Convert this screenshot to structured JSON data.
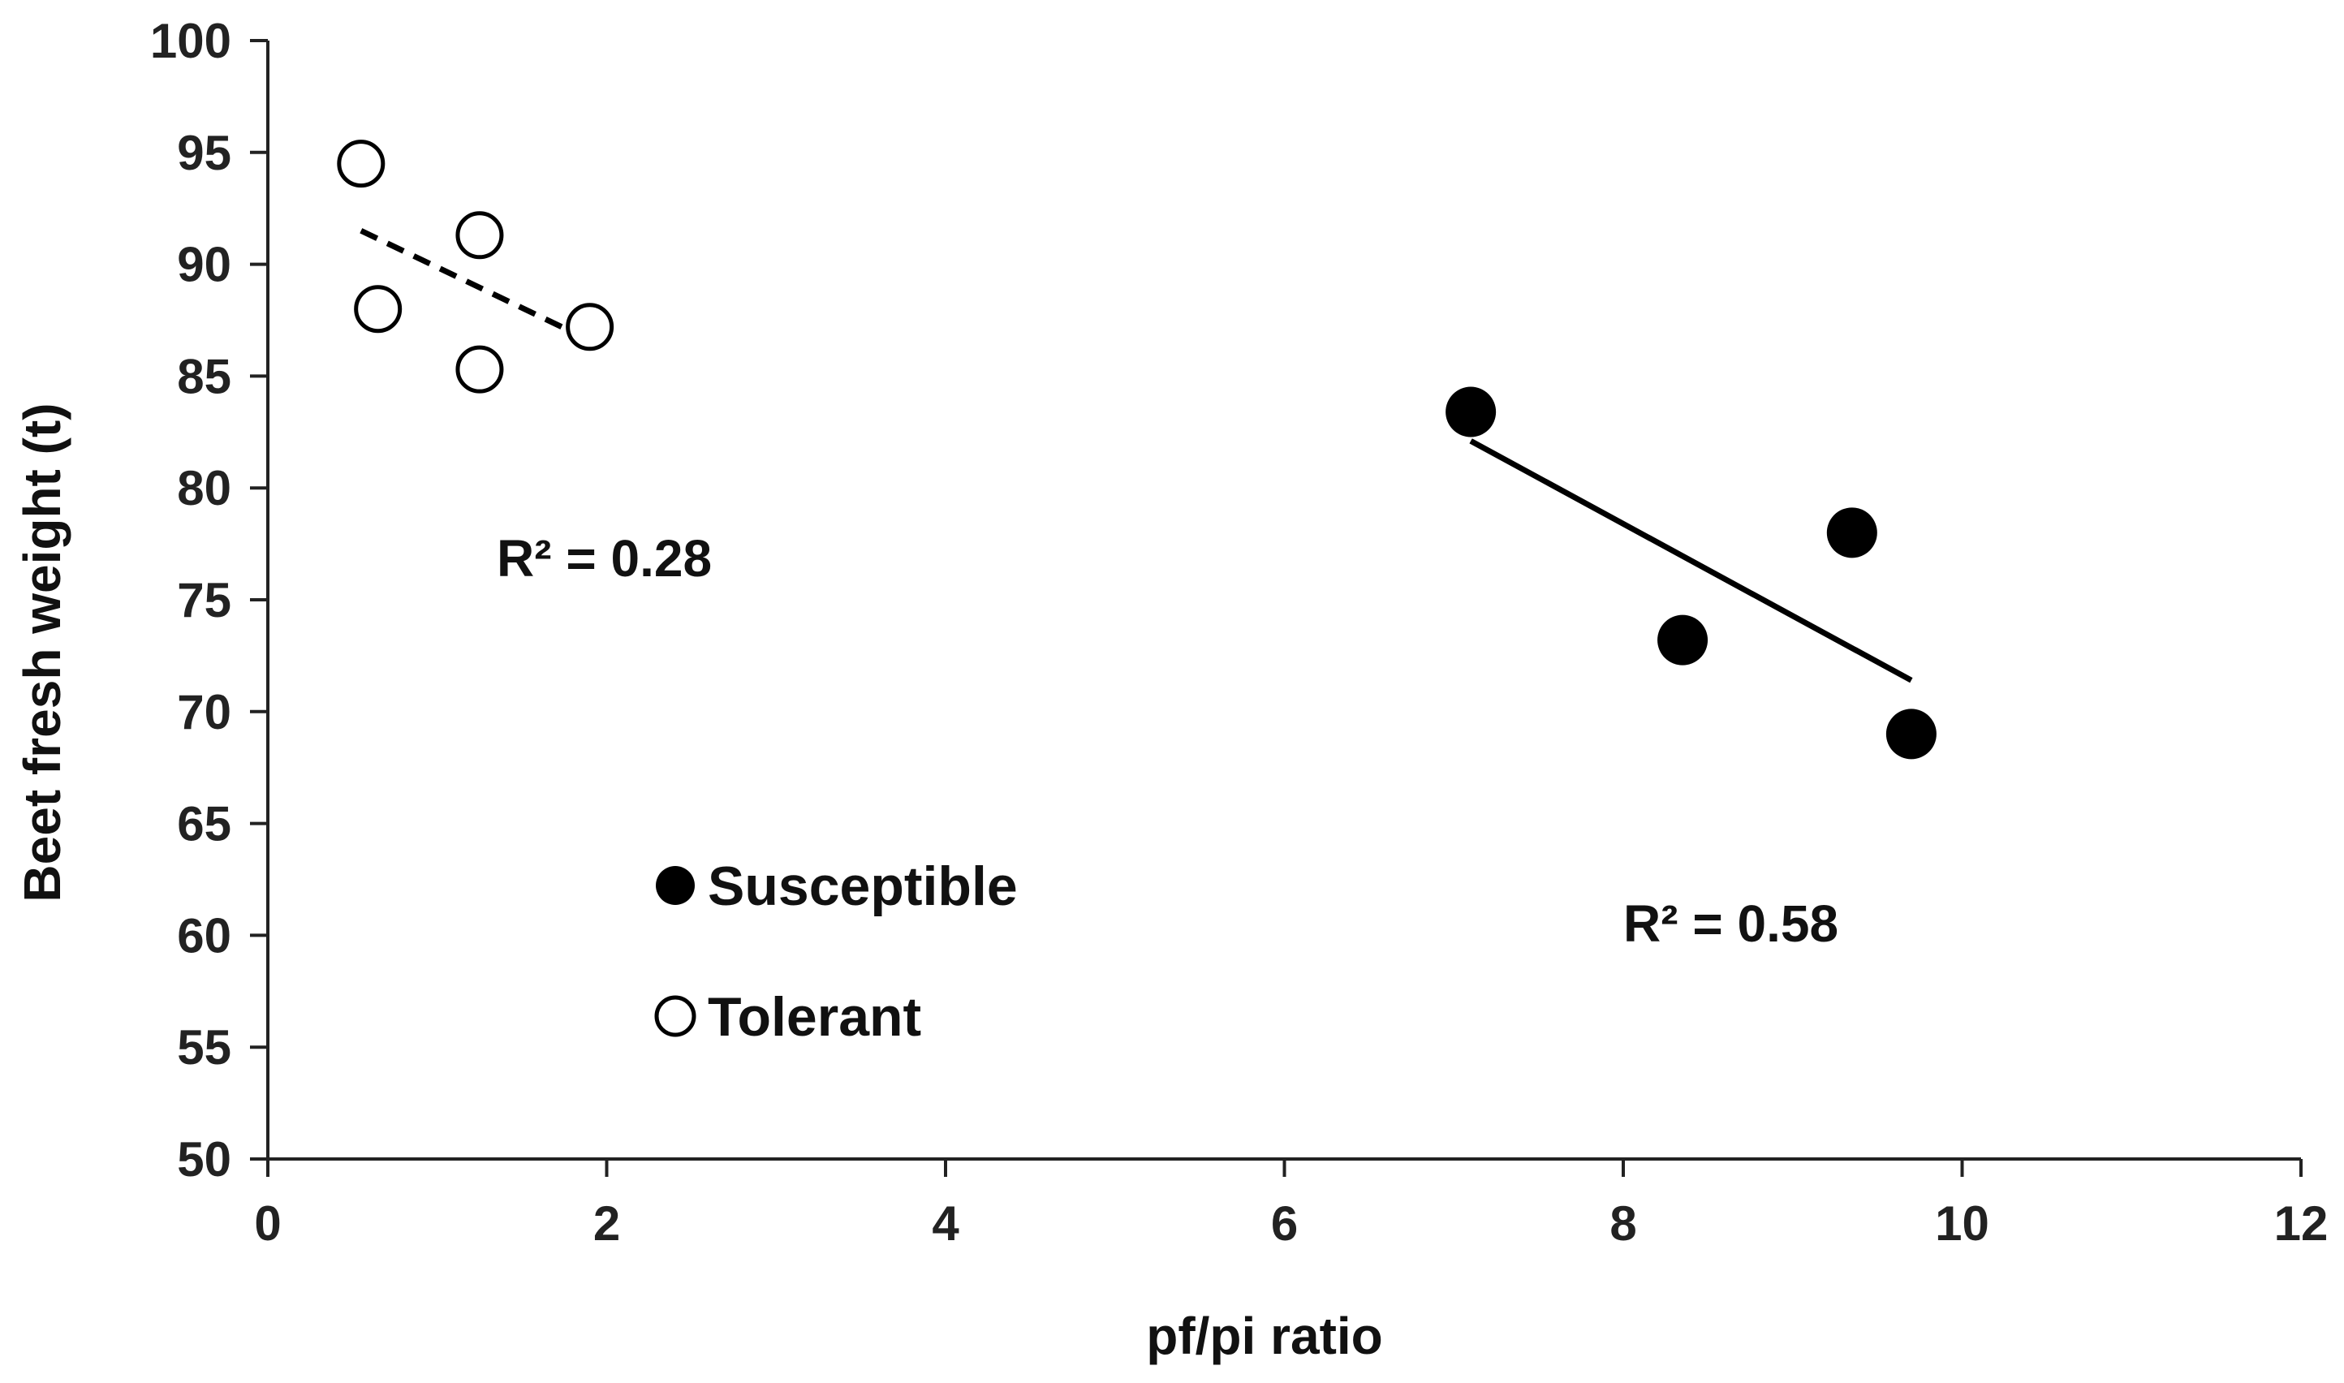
{
  "chart_data": {
    "type": "scatter",
    "title": "",
    "xlabel": "pf/pi ratio",
    "ylabel": "Beet fresh weight (t)",
    "xlim": [
      0,
      12
    ],
    "ylim": [
      50,
      100
    ],
    "xticks": [
      "0",
      "2",
      "4",
      "6",
      "8",
      "10",
      "12"
    ],
    "yticks": [
      "50",
      "55",
      "60",
      "65",
      "70",
      "75",
      "80",
      "85",
      "90",
      "95",
      "100"
    ],
    "series": [
      {
        "name": "Susceptible",
        "marker": "filled-circle",
        "points": [
          {
            "x": 7.1,
            "y": 83.4
          },
          {
            "x": 8.35,
            "y": 73.2
          },
          {
            "x": 9.35,
            "y": 78.0
          },
          {
            "x": 9.7,
            "y": 69.0
          }
        ],
        "trendline": {
          "style": "solid",
          "x": [
            7.1,
            9.7
          ],
          "y": [
            82.1,
            71.4
          ]
        },
        "r2_label": "R² = 0.58"
      },
      {
        "name": "Tolerant",
        "marker": "open-circle",
        "points": [
          {
            "x": 0.55,
            "y": 94.5
          },
          {
            "x": 0.65,
            "y": 88.0
          },
          {
            "x": 1.25,
            "y": 91.3
          },
          {
            "x": 1.25,
            "y": 85.3
          },
          {
            "x": 1.9,
            "y": 87.2
          }
        ],
        "trendline": {
          "style": "dashed",
          "x": [
            0.55,
            1.9
          ],
          "y": [
            91.5,
            86.6
          ]
        },
        "r2_label": "R² = 0.28"
      }
    ],
    "legend": {
      "position": "lower-left",
      "entries": [
        {
          "label": "Susceptible",
          "marker": "filled-circle"
        },
        {
          "label": "Tolerant",
          "marker": "open-circle"
        }
      ]
    },
    "colors": {
      "marker": "#000000",
      "axis": "#222222",
      "background": "#ffffff"
    }
  }
}
